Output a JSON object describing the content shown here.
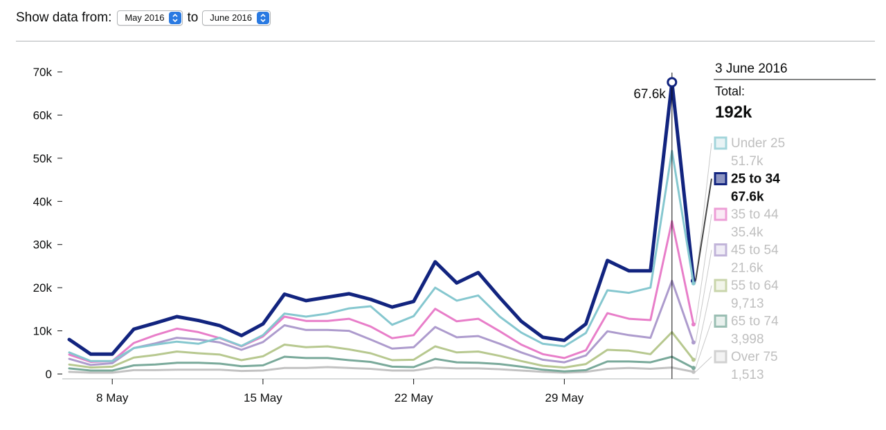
{
  "controls": {
    "show_label": "Show data from:",
    "from_value": "May 2016",
    "to_label": "to",
    "to_value": "June 2016"
  },
  "chart_data": {
    "type": "line",
    "x": [
      "2016-05-06",
      "2016-05-07",
      "2016-05-08",
      "2016-05-09",
      "2016-05-10",
      "2016-05-11",
      "2016-05-12",
      "2016-05-13",
      "2016-05-14",
      "2016-05-15",
      "2016-05-16",
      "2016-05-17",
      "2016-05-18",
      "2016-05-19",
      "2016-05-20",
      "2016-05-21",
      "2016-05-22",
      "2016-05-23",
      "2016-05-24",
      "2016-05-25",
      "2016-05-26",
      "2016-05-27",
      "2016-05-28",
      "2016-05-29",
      "2016-05-30",
      "2016-05-31",
      "2016-06-01",
      "2016-06-02",
      "2016-06-03",
      "2016-06-04"
    ],
    "x_ticks": [
      {
        "x": "2016-05-08",
        "label": "8 May"
      },
      {
        "x": "2016-05-15",
        "label": "15 May"
      },
      {
        "x": "2016-05-22",
        "label": "22 May"
      },
      {
        "x": "2016-05-29",
        "label": "29 May"
      }
    ],
    "y_ticks": [
      {
        "value": 0,
        "label": "0"
      },
      {
        "value": 10000,
        "label": "10k"
      },
      {
        "value": 20000,
        "label": "20k"
      },
      {
        "value": 30000,
        "label": "30k"
      },
      {
        "value": 40000,
        "label": "40k"
      },
      {
        "value": 50000,
        "label": "50k"
      },
      {
        "value": 60000,
        "label": "60k"
      },
      {
        "value": 70000,
        "label": "70k"
      }
    ],
    "ylim": [
      0,
      70000
    ],
    "grid": false,
    "series": [
      {
        "name": "Under 25",
        "color": "#85c7cf",
        "values": [
          5000,
          3000,
          3000,
          6000,
          6800,
          7500,
          7000,
          8400,
          6500,
          9000,
          14000,
          13300,
          14000,
          15200,
          15700,
          11400,
          13400,
          20000,
          17000,
          18200,
          13300,
          9600,
          7000,
          6400,
          9500,
          19400,
          18800,
          20000,
          51700,
          21000
        ]
      },
      {
        "name": "25 to 34",
        "color": "#12247f",
        "values": [
          8000,
          4600,
          4600,
          10400,
          11800,
          13300,
          12400,
          11200,
          8900,
          11600,
          18500,
          17000,
          17800,
          18600,
          17300,
          15500,
          16800,
          26000,
          21100,
          23500,
          17700,
          12200,
          8500,
          7800,
          11600,
          26300,
          23900,
          23900,
          67600,
          21600
        ]
      },
      {
        "name": "35 to 44",
        "color": "#e87ec9",
        "values": [
          4500,
          2800,
          3000,
          7200,
          9000,
          10500,
          9700,
          8300,
          6400,
          8700,
          13300,
          12300,
          12300,
          12800,
          11000,
          8300,
          9000,
          15100,
          12200,
          12800,
          9900,
          6800,
          4600,
          3700,
          5500,
          14100,
          12800,
          12500,
          35400,
          11500
        ]
      },
      {
        "name": "45 to 54",
        "color": "#ad9bcd",
        "values": [
          3500,
          2100,
          2500,
          6000,
          7100,
          8400,
          8000,
          7300,
          5600,
          7400,
          11300,
          10200,
          10200,
          10000,
          8000,
          5900,
          6200,
          10900,
          8500,
          8800,
          7000,
          5000,
          3300,
          2700,
          4300,
          9900,
          9000,
          8400,
          21600,
          7300
        ]
      },
      {
        "name": "55 to 64",
        "color": "#b7c88f",
        "values": [
          2200,
          1500,
          1700,
          3800,
          4400,
          5200,
          4800,
          4500,
          3200,
          4100,
          6800,
          6200,
          6400,
          5700,
          4800,
          3200,
          3300,
          6400,
          5000,
          5200,
          4200,
          3000,
          1900,
          1500,
          2300,
          5600,
          5400,
          4600,
          9713,
          3300
        ]
      },
      {
        "name": "65 to 74",
        "color": "#79a99a",
        "values": [
          1300,
          800,
          800,
          2000,
          2200,
          2600,
          2600,
          2400,
          1800,
          2000,
          4000,
          3700,
          3700,
          3200,
          2800,
          1700,
          1600,
          3500,
          2700,
          2600,
          2300,
          1700,
          1000,
          600,
          900,
          2900,
          2900,
          2700,
          3998,
          1400
        ]
      },
      {
        "name": "Over 75",
        "color": "#c2c2c2",
        "values": [
          500,
          300,
          300,
          900,
          900,
          1000,
          1000,
          1000,
          700,
          800,
          1400,
          1400,
          1600,
          1400,
          1200,
          800,
          800,
          1500,
          1300,
          1300,
          1100,
          800,
          500,
          300,
          500,
          1200,
          1400,
          1200,
          1513,
          500
        ]
      }
    ],
    "highlight_series": "25 to 34",
    "tooltip": {
      "date": "3 June 2016",
      "total_label": "Total:",
      "total": "192k",
      "peak_label": "67.6k",
      "legend": [
        {
          "name": "Under 25",
          "value": "51.7k",
          "color": "#85c7cf",
          "fill": "#e1f0f2"
        },
        {
          "name": "25 to 34",
          "value": "67.6k",
          "color": "#12247f",
          "fill": "#8e96c2"
        },
        {
          "name": "35 to 44",
          "value": "35.4k",
          "color": "#e87ec9",
          "fill": "#f9e3f2"
        },
        {
          "name": "45 to 54",
          "value": "21.6k",
          "color": "#ad9bcd",
          "fill": "#ece7f4"
        },
        {
          "name": "55 to 64",
          "value": "9,713",
          "color": "#b7c88f",
          "fill": "#eef2e4"
        },
        {
          "name": "65 to 74",
          "value": "3,998",
          "color": "#79a99a",
          "fill": "#e2ede9"
        },
        {
          "name": "Over 75",
          "value": "1,513",
          "color": "#c2c2c2",
          "fill": "#efefef"
        }
      ]
    }
  }
}
